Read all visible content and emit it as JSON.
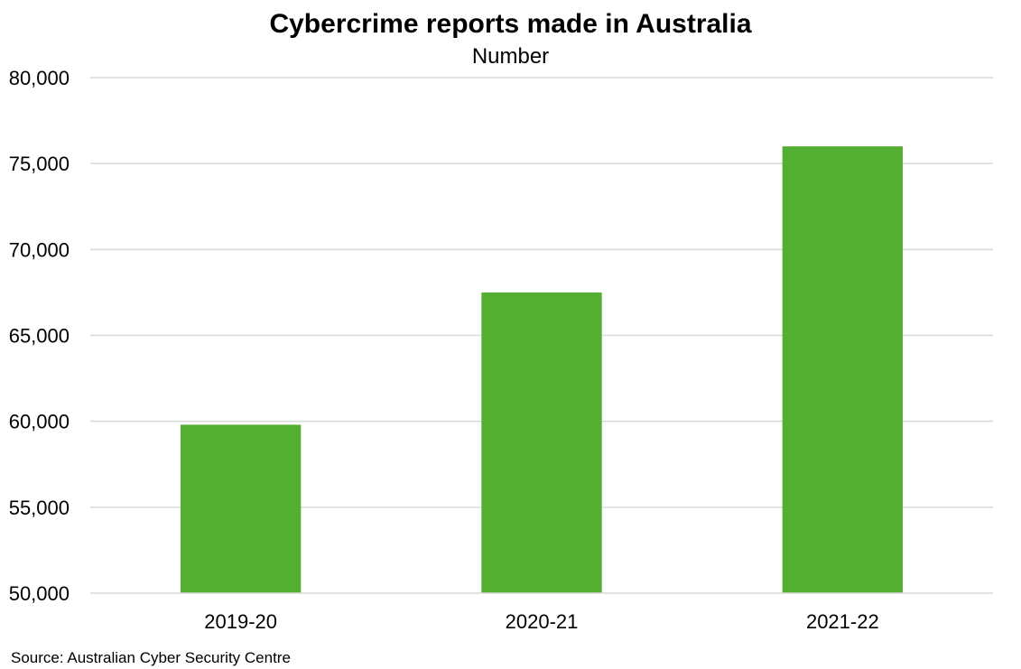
{
  "chart_data": {
    "type": "bar",
    "title": "Cybercrime reports made in Australia",
    "subtitle": "Number",
    "categories": [
      "2019-20",
      "2020-21",
      "2021-22"
    ],
    "values": [
      59800,
      67500,
      76000
    ],
    "ylim": [
      50000,
      80000
    ],
    "yticks": [
      50000,
      55000,
      60000,
      65000,
      70000,
      75000,
      80000
    ],
    "ytick_labels": [
      "50,000",
      "55,000",
      "60,000",
      "65,000",
      "70,000",
      "75,000",
      "80,000"
    ],
    "grid": true,
    "legend": "none",
    "bar_color": "#53AE32",
    "grid_color": "#D9D9D9",
    "source": "Source: Australian Cyber Security Centre"
  }
}
